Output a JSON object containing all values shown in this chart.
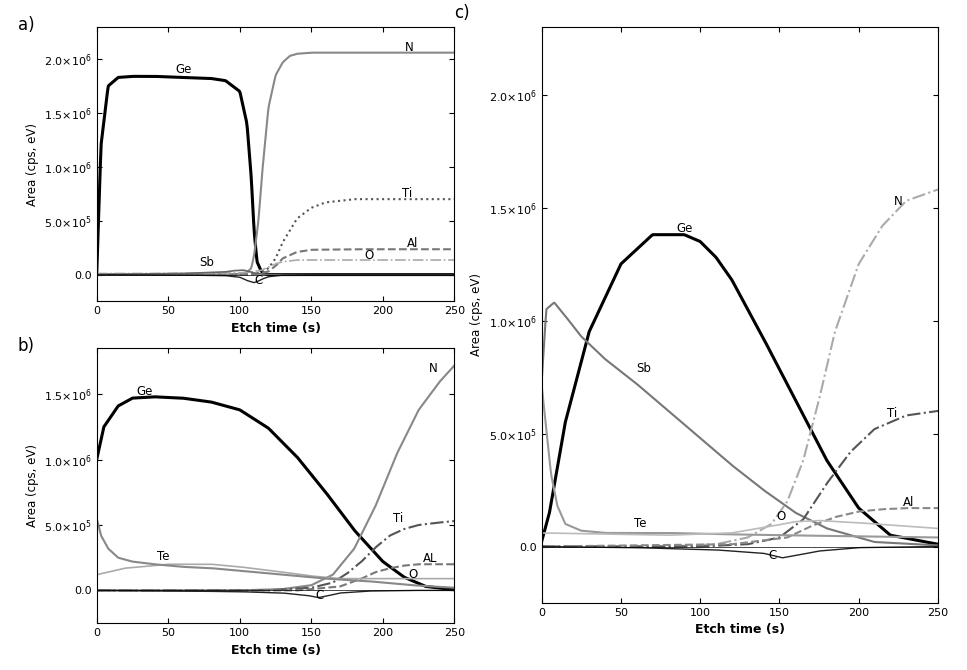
{
  "background_color": "#ffffff",
  "xlabel": "Etch time (s)",
  "ylabel": "Area (cps, eV)",
  "xlim": [
    0,
    250
  ],
  "panel_a": {
    "ylim": [
      -250000.0,
      2300000.0
    ],
    "yticks": [
      0.0,
      500000.0,
      1000000.0,
      1500000.0,
      2000000.0
    ],
    "series": {
      "Ge": {
        "x": [
          0,
          3,
          8,
          15,
          25,
          40,
          60,
          80,
          90,
          100,
          105,
          108,
          110,
          112,
          115,
          118,
          120,
          125,
          135,
          150,
          200,
          250
        ],
        "y": [
          0,
          1200000.0,
          1750000.0,
          1830000.0,
          1840000.0,
          1840000.0,
          1830000.0,
          1820000.0,
          1800000.0,
          1700000.0,
          1400000.0,
          900000.0,
          400000.0,
          120000.0,
          30000.0,
          5000.0,
          1000.0,
          0,
          0,
          0,
          0,
          0
        ],
        "color": "#000000",
        "lw": 2.2,
        "ls": "-",
        "label": "Ge",
        "ann_x": 55,
        "ann_y": 1840000.0
      },
      "N": {
        "x": [
          0,
          50,
          90,
          100,
          105,
          108,
          110,
          113,
          116,
          120,
          125,
          130,
          135,
          140,
          150,
          170,
          200,
          220,
          250
        ],
        "y": [
          0,
          0,
          0,
          5000.0,
          20000.0,
          60000.0,
          180000.0,
          500000.0,
          1000000.0,
          1550000.0,
          1850000.0,
          1970000.0,
          2030000.0,
          2050000.0,
          2060000.0,
          2060000.0,
          2060000.0,
          2060000.0,
          2060000.0
        ],
        "color": "#888888",
        "lw": 1.5,
        "ls": "-",
        "label": "N",
        "ann_x": 215,
        "ann_y": 2050000.0
      },
      "Ti": {
        "x": [
          0,
          90,
          105,
          110,
          115,
          120,
          125,
          130,
          140,
          150,
          160,
          180,
          200,
          250
        ],
        "y": [
          0,
          0,
          0,
          5000.0,
          20000.0,
          60000.0,
          150000.0,
          300000.0,
          520000.0,
          620000.0,
          670000.0,
          700000.0,
          700000.0,
          700000.0
        ],
        "color": "#555555",
        "lw": 1.5,
        "ls": ":",
        "label": "Ti",
        "ann_x": 213,
        "ann_y": 690000.0
      },
      "Al": {
        "x": [
          0,
          100,
          108,
          115,
          120,
          125,
          130,
          140,
          150,
          180,
          200,
          250
        ],
        "y": [
          0,
          0,
          2000.0,
          10000.0,
          30000.0,
          80000.0,
          150000.0,
          210000.0,
          230000.0,
          235000.0,
          235000.0,
          235000.0
        ],
        "color": "#777777",
        "lw": 1.5,
        "ls": "--",
        "label": "Al",
        "ann_x": 217,
        "ann_y": 230000.0
      },
      "O": {
        "x": [
          0,
          50,
          100,
          108,
          115,
          120,
          125,
          130,
          140,
          160,
          200,
          250
        ],
        "y": [
          10000.0,
          10000.0,
          15000.0,
          25000.0,
          40000.0,
          70000.0,
          100000.0,
          120000.0,
          135000.0,
          135000.0,
          135000.0,
          135000.0
        ],
        "color": "#aaaaaa",
        "lw": 1.2,
        "ls": "-.",
        "label": "O",
        "ann_x": 187,
        "ann_y": 120000.0
      },
      "Sb": {
        "x": [
          0,
          30,
          60,
          80,
          90,
          95,
          100,
          103,
          106,
          110,
          115,
          120,
          150,
          200,
          250
        ],
        "y": [
          0,
          5000.0,
          10000.0,
          20000.0,
          25000.0,
          35000.0,
          40000.0,
          40000.0,
          30000.0,
          15000.0,
          5000.0,
          1000.0,
          0,
          0,
          0
        ],
        "color": "#666666",
        "lw": 1.2,
        "ls": "-",
        "label": "Sb",
        "ann_x": 72,
        "ann_y": 55000.0
      },
      "C": {
        "x": [
          0,
          60,
          90,
          100,
          105,
          110,
          113,
          116,
          120,
          130,
          150,
          200,
          250
        ],
        "y": [
          0,
          -5000.0,
          -10000.0,
          -25000.0,
          -55000.0,
          -75000.0,
          -60000.0,
          -40000.0,
          -20000.0,
          -5000.0,
          0,
          0,
          0
        ],
        "color": "#222222",
        "lw": 1.0,
        "ls": "-",
        "label": "C",
        "ann_x": 110,
        "ann_y": -115000.0
      }
    }
  },
  "panel_b": {
    "ylim": [
      -250000.0,
      1850000.0
    ],
    "yticks": [
      0.0,
      500000.0,
      1000000.0,
      1500000.0
    ],
    "series": {
      "Ge": {
        "x": [
          0,
          5,
          15,
          25,
          40,
          60,
          80,
          100,
          120,
          140,
          160,
          180,
          200,
          215,
          230,
          250
        ],
        "y": [
          1000000.0,
          1250000.0,
          1410000.0,
          1470000.0,
          1480000.0,
          1470000.0,
          1440000.0,
          1380000.0,
          1240000.0,
          1020000.0,
          750000.0,
          460000.0,
          220000.0,
          100000.0,
          30000.0,
          5000.0
        ],
        "color": "#000000",
        "lw": 2.2,
        "ls": "-",
        "label": "Ge",
        "ann_x": 28,
        "ann_y": 1470000.0
      },
      "N": {
        "x": [
          0,
          100,
          130,
          150,
          165,
          180,
          195,
          210,
          225,
          240,
          250
        ],
        "y": [
          0,
          0,
          10000.0,
          40000.0,
          120000.0,
          320000.0,
          650000.0,
          1050000.0,
          1380000.0,
          1600000.0,
          1720000.0
        ],
        "color": "#888888",
        "lw": 1.5,
        "ls": "-",
        "label": "N",
        "ann_x": 232,
        "ann_y": 1650000.0
      },
      "Ti": {
        "x": [
          0,
          120,
          150,
          165,
          175,
          185,
          195,
          205,
          215,
          225,
          240,
          250
        ],
        "y": [
          0,
          0,
          20000.0,
          60000.0,
          130000.0,
          220000.0,
          330000.0,
          420000.0,
          470000.0,
          500000.0,
          520000.0,
          530000.0
        ],
        "color": "#555555",
        "lw": 1.5,
        "ls": "-.",
        "label": "Ti",
        "ann_x": 207,
        "ann_y": 500000.0
      },
      "Al": {
        "x": [
          0,
          140,
          170,
          185,
          195,
          205,
          215,
          225,
          250
        ],
        "y": [
          0,
          0,
          30000.0,
          90000.0,
          140000.0,
          170000.0,
          190000.0,
          200000.0,
          200000.0
        ],
        "color": "#777777",
        "lw": 1.5,
        "ls": "--",
        "label": "AL",
        "ann_x": 228,
        "ann_y": 195000.0
      },
      "O": {
        "x": [
          0,
          20,
          50,
          80,
          100,
          130,
          150,
          170,
          190,
          210,
          230,
          250
        ],
        "y": [
          120000.0,
          170000.0,
          200000.0,
          200000.0,
          180000.0,
          140000.0,
          110000.0,
          90000.0,
          90000.0,
          90000.0,
          90000.0,
          90000.0
        ],
        "color": "#aaaaaa",
        "lw": 1.2,
        "ls": "-",
        "label": "O",
        "ann_x": 218,
        "ann_y": 75000.0
      },
      "Te": {
        "x": [
          0,
          3,
          8,
          15,
          25,
          40,
          60,
          80,
          100,
          130,
          160,
          190,
          220,
          250
        ],
        "y": [
          550000.0,
          420000.0,
          320000.0,
          250000.0,
          220000.0,
          200000.0,
          180000.0,
          170000.0,
          150000.0,
          120000.0,
          90000.0,
          70000.0,
          40000.0,
          20000.0
        ],
        "color": "#888888",
        "lw": 1.5,
        "ls": "-",
        "label": "Te",
        "ann_x": 42,
        "ann_y": 210000.0
      },
      "C": {
        "x": [
          0,
          60,
          100,
          130,
          148,
          155,
          162,
          170,
          190,
          220,
          250
        ],
        "y": [
          0,
          -5000.0,
          -10000.0,
          -20000.0,
          -40000.0,
          -55000.0,
          -40000.0,
          -20000.0,
          -5000.0,
          0,
          0
        ],
        "color": "#222222",
        "lw": 1.0,
        "ls": "-",
        "label": "C",
        "ann_x": 153,
        "ann_y": -90000.0
      }
    }
  },
  "panel_c": {
    "ylim": [
      -250000.0,
      2300000.0
    ],
    "yticks": [
      0.0,
      500000.0,
      1000000.0,
      1500000.0,
      2000000.0
    ],
    "series": {
      "Ge": {
        "x": [
          0,
          5,
          15,
          30,
          50,
          70,
          90,
          100,
          110,
          120,
          140,
          160,
          180,
          200,
          220,
          250
        ],
        "y": [
          20000.0,
          150000.0,
          550000.0,
          950000.0,
          1250000.0,
          1380000.0,
          1380000.0,
          1350000.0,
          1280000.0,
          1180000.0,
          920000.0,
          650000.0,
          380000.0,
          170000.0,
          50000.0,
          10000.0
        ],
        "color": "#000000",
        "lw": 2.2,
        "ls": "-",
        "label": "Ge",
        "ann_x": 85,
        "ann_y": 1380000.0
      },
      "Sb": {
        "x": [
          0,
          3,
          8,
          15,
          25,
          40,
          60,
          80,
          100,
          120,
          140,
          160,
          180,
          210,
          250
        ],
        "y": [
          720000.0,
          1050000.0,
          1080000.0,
          1020000.0,
          930000.0,
          830000.0,
          720000.0,
          600000.0,
          480000.0,
          360000.0,
          250000.0,
          150000.0,
          80000.0,
          20000.0,
          5000.0
        ],
        "color": "#777777",
        "lw": 1.5,
        "ls": "-",
        "label": "Sb",
        "ann_x": 60,
        "ann_y": 760000.0
      },
      "N": {
        "x": [
          0,
          80,
          110,
          130,
          145,
          155,
          165,
          175,
          185,
          200,
          215,
          230,
          250
        ],
        "y": [
          0,
          0,
          10000.0,
          40000.0,
          100000.0,
          200000.0,
          380000.0,
          650000.0,
          950000.0,
          1250000.0,
          1420000.0,
          1530000.0,
          1580000.0
        ],
        "color": "#aaaaaa",
        "lw": 1.5,
        "ls": "-.",
        "label": "N",
        "ann_x": 222,
        "ann_y": 1500000.0
      },
      "Ti": {
        "x": [
          0,
          100,
          130,
          150,
          165,
          180,
          195,
          210,
          230,
          250
        ],
        "y": [
          0,
          0,
          10000.0,
          40000.0,
          120000.0,
          280000.0,
          420000.0,
          520000.0,
          580000.0,
          600000.0
        ],
        "color": "#555555",
        "lw": 1.5,
        "ls": "-.",
        "label": "Ti",
        "ann_x": 218,
        "ann_y": 560000.0
      },
      "Al": {
        "x": [
          0,
          120,
          155,
          170,
          185,
          200,
          215,
          230,
          250
        ],
        "y": [
          0,
          10000.0,
          40000.0,
          90000.0,
          130000.0,
          155000.0,
          165000.0,
          170000.0,
          170000.0
        ],
        "color": "#888888",
        "lw": 1.5,
        "ls": "--",
        "label": "Al",
        "ann_x": 228,
        "ann_y": 165000.0
      },
      "Te": {
        "x": [
          0,
          3,
          6,
          10,
          15,
          25,
          40,
          60,
          80,
          110,
          150,
          200,
          250
        ],
        "y": [
          720000.0,
          520000.0,
          320000.0,
          180000.0,
          100000.0,
          70000.0,
          60000.0,
          60000.0,
          60000.0,
          55000.0,
          50000.0,
          45000.0,
          40000.0
        ],
        "color": "#999999",
        "lw": 1.5,
        "ls": "-",
        "label": "Te",
        "ann_x": 58,
        "ann_y": 75000.0
      },
      "O": {
        "x": [
          0,
          40,
          80,
          120,
          145,
          160,
          175,
          200,
          230,
          250
        ],
        "y": [
          60000.0,
          55000.0,
          50000.0,
          60000.0,
          90000.0,
          110000.0,
          115000.0,
          105000.0,
          90000.0,
          80000.0
        ],
        "color": "#bbbbbb",
        "lw": 1.2,
        "ls": "-",
        "label": "O",
        "ann_x": 148,
        "ann_y": 105000.0
      },
      "C": {
        "x": [
          0,
          60,
          110,
          140,
          152,
          160,
          175,
          200,
          250
        ],
        "y": [
          0,
          -5000.0,
          -15000.0,
          -30000.0,
          -50000.0,
          -40000.0,
          -20000.0,
          -5000.0,
          0
        ],
        "color": "#222222",
        "lw": 1.0,
        "ls": "-",
        "label": "C",
        "ann_x": 143,
        "ann_y": -70000.0
      }
    }
  }
}
